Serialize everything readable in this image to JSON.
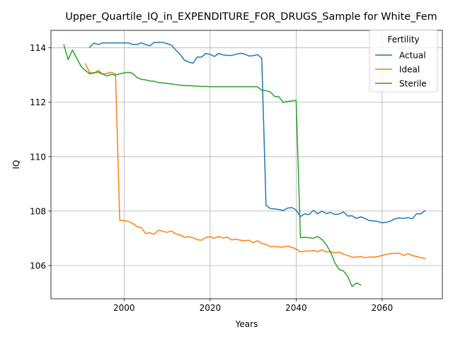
{
  "chart_data": {
    "type": "line",
    "title": "Upper_Quartile_IQ_in_EXPENDITURE_FOR_DRUGS_Sample for White_Fem",
    "xlabel": "Years",
    "ylabel": "IQ",
    "xlim": [
      1983,
      2074
    ],
    "ylim": [
      104.78,
      114.64
    ],
    "x_ticks": [
      2000,
      2020,
      2040,
      2060
    ],
    "y_ticks": [
      106,
      108,
      110,
      112,
      114
    ],
    "grid": true,
    "legend": {
      "title": "Fertility",
      "position": "top-right"
    },
    "series": [
      {
        "name": "Actual",
        "color": "#1f77b4",
        "points": [
          [
            1992,
            114.02
          ],
          [
            1993,
            114.17
          ],
          [
            1994,
            114.12
          ],
          [
            1995,
            114.18
          ],
          [
            1996,
            114.18
          ],
          [
            1997,
            114.18
          ],
          [
            1998,
            114.18
          ],
          [
            1999,
            114.18
          ],
          [
            2000,
            114.18
          ],
          [
            2001,
            114.18
          ],
          [
            2002,
            114.12
          ],
          [
            2003,
            114.12
          ],
          [
            2004,
            114.18
          ],
          [
            2005,
            114.12
          ],
          [
            2006,
            114.07
          ],
          [
            2007,
            114.2
          ],
          [
            2008,
            114.2
          ],
          [
            2009,
            114.2
          ],
          [
            2010,
            114.15
          ],
          [
            2011,
            114.1
          ],
          [
            2012,
            113.92
          ],
          [
            2013,
            113.76
          ],
          [
            2014,
            113.55
          ],
          [
            2015,
            113.48
          ],
          [
            2016,
            113.43
          ],
          [
            2017,
            113.66
          ],
          [
            2018,
            113.66
          ],
          [
            2019,
            113.79
          ],
          [
            2020,
            113.76
          ],
          [
            2021,
            113.68
          ],
          [
            2022,
            113.79
          ],
          [
            2023,
            113.74
          ],
          [
            2024,
            113.72
          ],
          [
            2025,
            113.72
          ],
          [
            2026,
            113.76
          ],
          [
            2027,
            113.8
          ],
          [
            2028,
            113.77
          ],
          [
            2029,
            113.7
          ],
          [
            2030,
            113.71
          ],
          [
            2031,
            113.75
          ],
          [
            2032,
            113.62
          ],
          [
            2033,
            108.22
          ],
          [
            2034,
            108.09
          ],
          [
            2035,
            108.08
          ],
          [
            2036,
            108.06
          ],
          [
            2037,
            108.02
          ],
          [
            2038,
            108.11
          ],
          [
            2039,
            108.13
          ],
          [
            2040,
            108.04
          ],
          [
            2041,
            107.8
          ],
          [
            2042,
            107.9
          ],
          [
            2043,
            107.87
          ],
          [
            2044,
            108.03
          ],
          [
            2045,
            107.9
          ],
          [
            2046,
            108.0
          ],
          [
            2047,
            107.91
          ],
          [
            2048,
            107.95
          ],
          [
            2049,
            107.88
          ],
          [
            2050,
            107.89
          ],
          [
            2051,
            107.97
          ],
          [
            2052,
            107.82
          ],
          [
            2053,
            107.83
          ],
          [
            2054,
            107.73
          ],
          [
            2055,
            107.79
          ],
          [
            2056,
            107.73
          ],
          [
            2057,
            107.65
          ],
          [
            2058,
            107.64
          ],
          [
            2059,
            107.62
          ],
          [
            2060,
            107.57
          ],
          [
            2061,
            107.59
          ],
          [
            2062,
            107.64
          ],
          [
            2063,
            107.72
          ],
          [
            2064,
            107.75
          ],
          [
            2065,
            107.73
          ],
          [
            2066,
            107.76
          ],
          [
            2067,
            107.72
          ],
          [
            2068,
            107.9
          ],
          [
            2069,
            107.9
          ],
          [
            2070,
            108.02
          ]
        ]
      },
      {
        "name": "Ideal",
        "color": "#ff7f0e",
        "points": [
          [
            1991,
            113.41
          ],
          [
            1992,
            113.09
          ],
          [
            1993,
            113.06
          ],
          [
            1994,
            113.17
          ],
          [
            1995,
            113.04
          ],
          [
            1996,
            113.06
          ],
          [
            1997,
            113.1
          ],
          [
            1998,
            113.04
          ],
          [
            1999,
            107.66
          ],
          [
            2000,
            107.65
          ],
          [
            2001,
            107.62
          ],
          [
            2002,
            107.55
          ],
          [
            2003,
            107.43
          ],
          [
            2004,
            107.39
          ],
          [
            2005,
            107.18
          ],
          [
            2006,
            107.2
          ],
          [
            2007,
            107.15
          ],
          [
            2008,
            107.3
          ],
          [
            2009,
            107.26
          ],
          [
            2010,
            107.22
          ],
          [
            2011,
            107.27
          ],
          [
            2012,
            107.16
          ],
          [
            2013,
            107.13
          ],
          [
            2014,
            107.03
          ],
          [
            2015,
            107.06
          ],
          [
            2016,
            107.02
          ],
          [
            2017,
            106.95
          ],
          [
            2018,
            106.93
          ],
          [
            2019,
            107.03
          ],
          [
            2020,
            107.06
          ],
          [
            2021,
            107.0
          ],
          [
            2022,
            107.07
          ],
          [
            2023,
            107.01
          ],
          [
            2024,
            107.05
          ],
          [
            2025,
            106.94
          ],
          [
            2026,
            106.97
          ],
          [
            2027,
            106.93
          ],
          [
            2028,
            106.91
          ],
          [
            2029,
            106.93
          ],
          [
            2030,
            106.84
          ],
          [
            2031,
            106.91
          ],
          [
            2032,
            106.81
          ],
          [
            2033,
            106.78
          ],
          [
            2034,
            106.69
          ],
          [
            2035,
            106.7
          ],
          [
            2036,
            106.68
          ],
          [
            2037,
            106.68
          ],
          [
            2038,
            106.71
          ],
          [
            2039,
            106.67
          ],
          [
            2040,
            106.61
          ],
          [
            2041,
            106.5
          ],
          [
            2042,
            106.53
          ],
          [
            2043,
            106.53
          ],
          [
            2044,
            106.55
          ],
          [
            2045,
            106.51
          ],
          [
            2046,
            106.58
          ],
          [
            2047,
            106.5
          ],
          [
            2048,
            106.51
          ],
          [
            2049,
            106.47
          ],
          [
            2050,
            106.49
          ],
          [
            2051,
            106.42
          ],
          [
            2052,
            106.37
          ],
          [
            2053,
            106.31
          ],
          [
            2054,
            106.31
          ],
          [
            2055,
            106.33
          ],
          [
            2056,
            106.29
          ],
          [
            2057,
            106.31
          ],
          [
            2058,
            106.31
          ],
          [
            2059,
            106.33
          ],
          [
            2060,
            106.37
          ],
          [
            2061,
            106.41
          ],
          [
            2062,
            106.44
          ],
          [
            2063,
            106.45
          ],
          [
            2064,
            106.45
          ],
          [
            2065,
            106.37
          ],
          [
            2066,
            106.44
          ],
          [
            2067,
            106.37
          ],
          [
            2068,
            106.33
          ],
          [
            2069,
            106.29
          ],
          [
            2070,
            106.26
          ]
        ]
      },
      {
        "name": "Sterile",
        "color": "#2ca02c",
        "points": [
          [
            1986,
            114.11
          ],
          [
            1987,
            113.56
          ],
          [
            1988,
            113.92
          ],
          [
            1989,
            113.61
          ],
          [
            1990,
            113.32
          ],
          [
            1991,
            113.17
          ],
          [
            1992,
            113.04
          ],
          [
            1993,
            113.09
          ],
          [
            1994,
            113.11
          ],
          [
            1995,
            113.03
          ],
          [
            1996,
            112.97
          ],
          [
            1997,
            113.02
          ],
          [
            1998,
            113.0
          ],
          [
            1999,
            113.04
          ],
          [
            2000,
            113.08
          ],
          [
            2001,
            113.1
          ],
          [
            2002,
            113.06
          ],
          [
            2003,
            112.91
          ],
          [
            2004,
            112.84
          ],
          [
            2005,
            112.82
          ],
          [
            2006,
            112.78
          ],
          [
            2007,
            112.77
          ],
          [
            2008,
            112.72
          ],
          [
            2009,
            112.71
          ],
          [
            2010,
            112.69
          ],
          [
            2011,
            112.67
          ],
          [
            2012,
            112.65
          ],
          [
            2013,
            112.63
          ],
          [
            2014,
            112.61
          ],
          [
            2015,
            112.61
          ],
          [
            2016,
            112.6
          ],
          [
            2017,
            112.59
          ],
          [
            2018,
            112.58
          ],
          [
            2019,
            112.58
          ],
          [
            2020,
            112.57
          ],
          [
            2021,
            112.57
          ],
          [
            2022,
            112.57
          ],
          [
            2023,
            112.57
          ],
          [
            2024,
            112.57
          ],
          [
            2025,
            112.57
          ],
          [
            2026,
            112.57
          ],
          [
            2027,
            112.57
          ],
          [
            2028,
            112.57
          ],
          [
            2029,
            112.57
          ],
          [
            2030,
            112.57
          ],
          [
            2031,
            112.57
          ],
          [
            2032,
            112.44
          ],
          [
            2033,
            112.42
          ],
          [
            2034,
            112.38
          ],
          [
            2035,
            112.21
          ],
          [
            2036,
            112.2
          ],
          [
            2037,
            111.99
          ],
          [
            2038,
            112.03
          ],
          [
            2039,
            112.05
          ],
          [
            2040,
            112.07
          ],
          [
            2041,
            107.02
          ],
          [
            2042,
            107.04
          ],
          [
            2043,
            107.02
          ],
          [
            2044,
            107.0
          ],
          [
            2045,
            107.07
          ],
          [
            2046,
            106.96
          ],
          [
            2047,
            106.77
          ],
          [
            2048,
            106.5
          ],
          [
            2049,
            106.1
          ],
          [
            2050,
            105.86
          ],
          [
            2051,
            105.8
          ],
          [
            2052,
            105.6
          ],
          [
            2053,
            105.23
          ],
          [
            2054,
            105.36
          ],
          [
            2055,
            105.29
          ]
        ]
      }
    ]
  }
}
